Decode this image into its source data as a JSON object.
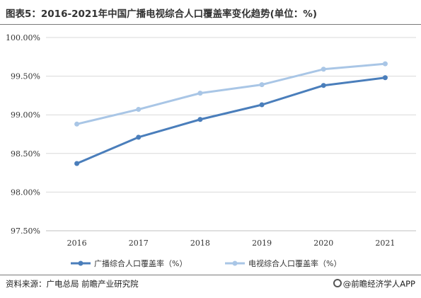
{
  "header": {
    "title": "图表5：2016-2021年中国广播电视综合人口覆盖率变化趋势(单位：%)"
  },
  "footer": {
    "source": "资料来源：广电总局 前瞻产业研究院",
    "brand": "@前瞻经济学人APP"
  },
  "chart_data": {
    "type": "line",
    "title": "图表5：2016-2021年中国广播电视综合人口覆盖率变化趋势(单位：%)",
    "categories": [
      "2016",
      "2017",
      "2018",
      "2019",
      "2020",
      "2021"
    ],
    "series": [
      {
        "name": "广播综合人口覆盖率（%）",
        "color": "#4a7ebb",
        "values": [
          98.37,
          98.71,
          98.94,
          99.13,
          99.38,
          99.48
        ]
      },
      {
        "name": "电视综合人口覆盖率（%）",
        "color": "#a9c6e6",
        "values": [
          98.88,
          99.07,
          99.28,
          99.39,
          99.59,
          99.66
        ]
      }
    ],
    "ylim": [
      97.5,
      100.0
    ],
    "yticks": [
      97.5,
      98.0,
      98.5,
      99.0,
      99.5,
      100.0
    ],
    "ytick_labels": [
      "97.50%",
      "98.00%",
      "98.50%",
      "99.00%",
      "99.50%",
      "100.00%"
    ],
    "grid": true,
    "legend": "bottom"
  }
}
